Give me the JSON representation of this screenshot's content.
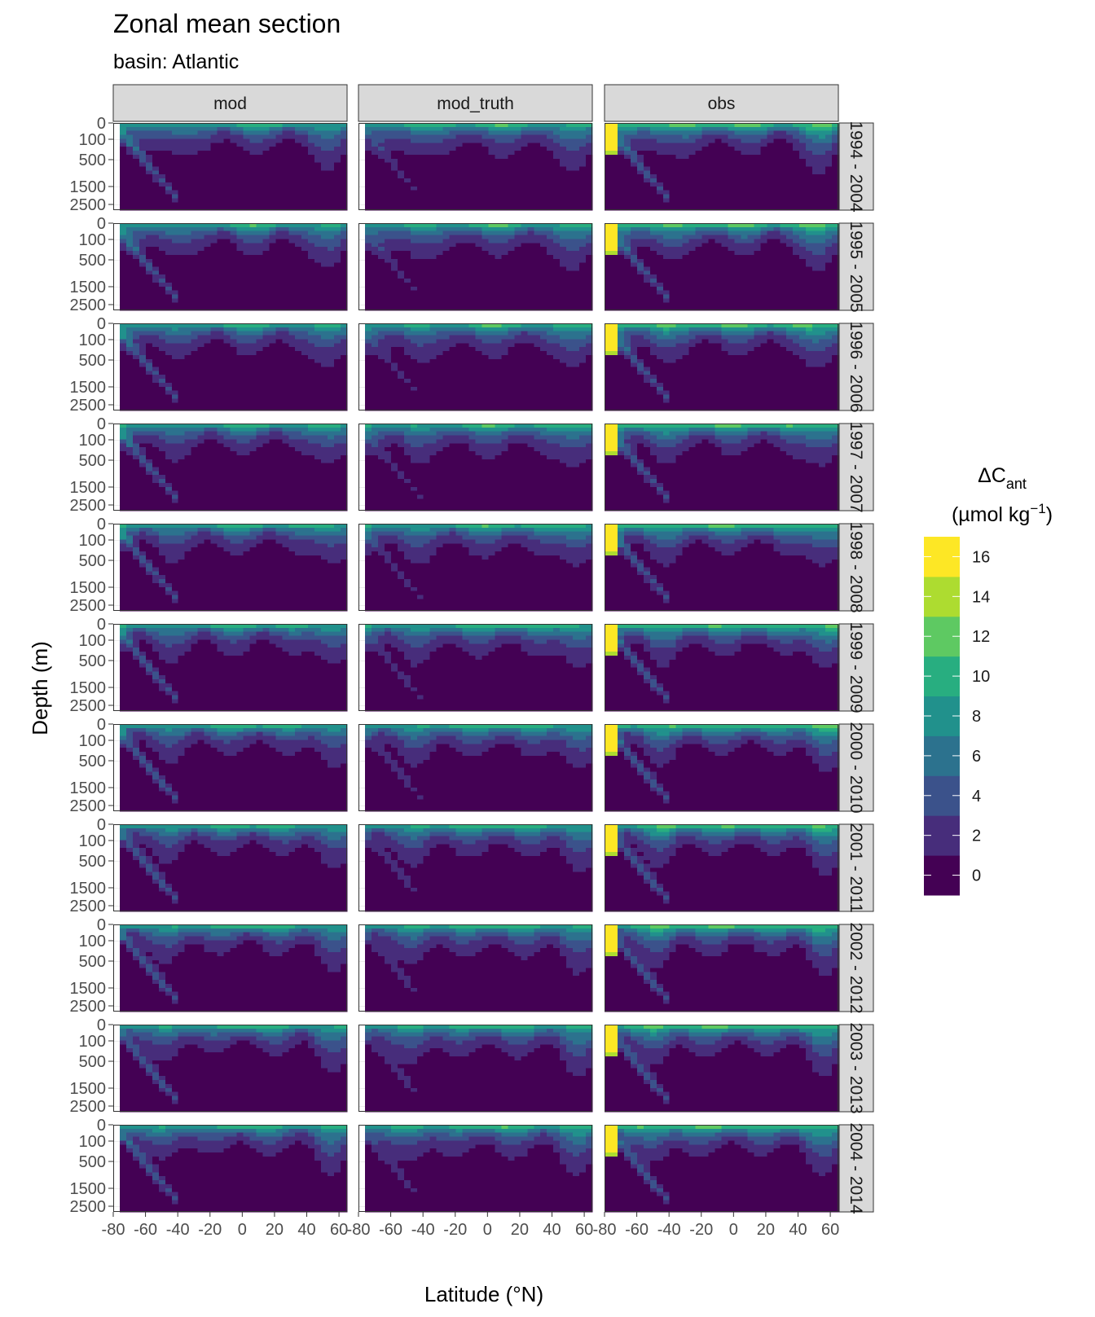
{
  "chart_data": {
    "type": "heatmap",
    "title": "Zonal mean section",
    "subtitle": "basin: Atlantic",
    "xlabel": "Latitude (°N)",
    "ylabel": "Depth (m)",
    "xlim": [
      -80,
      65
    ],
    "ylim": [
      0,
      3000
    ],
    "y_scale": "reversed, compressed with depth",
    "x_ticks": [
      "-80",
      "-60",
      "-40",
      "-20",
      "0",
      "20",
      "40",
      "60"
    ],
    "y_ticks": [
      "0",
      "100",
      "500",
      "1500",
      "2500"
    ],
    "columns": [
      "mod",
      "mod_truth",
      "obs"
    ],
    "rows": [
      "1994 - 2004",
      "1995 - 2005",
      "1996 - 2006",
      "1997 - 2007",
      "1998 - 2008",
      "1999 - 2009",
      "2000 - 2010",
      "2001 - 2011",
      "2002 - 2012",
      "2003 - 2013",
      "2004 - 2014"
    ],
    "legend": {
      "title_main": "ΔC",
      "title_sub": "ant",
      "title_units_pre": "(µmol kg",
      "title_units_sup": "−1",
      "title_units_post": ")",
      "levels": [
        "0",
        "2",
        "4",
        "6",
        "8",
        "10",
        "12",
        "14",
        "16"
      ],
      "colors": [
        "#440154",
        "#472d7b",
        "#3b528b",
        "#2c728e",
        "#21918c",
        "#28ae80",
        "#5ec962",
        "#addc30",
        "#fde725"
      ],
      "placement": "right"
    },
    "grid": true
  }
}
